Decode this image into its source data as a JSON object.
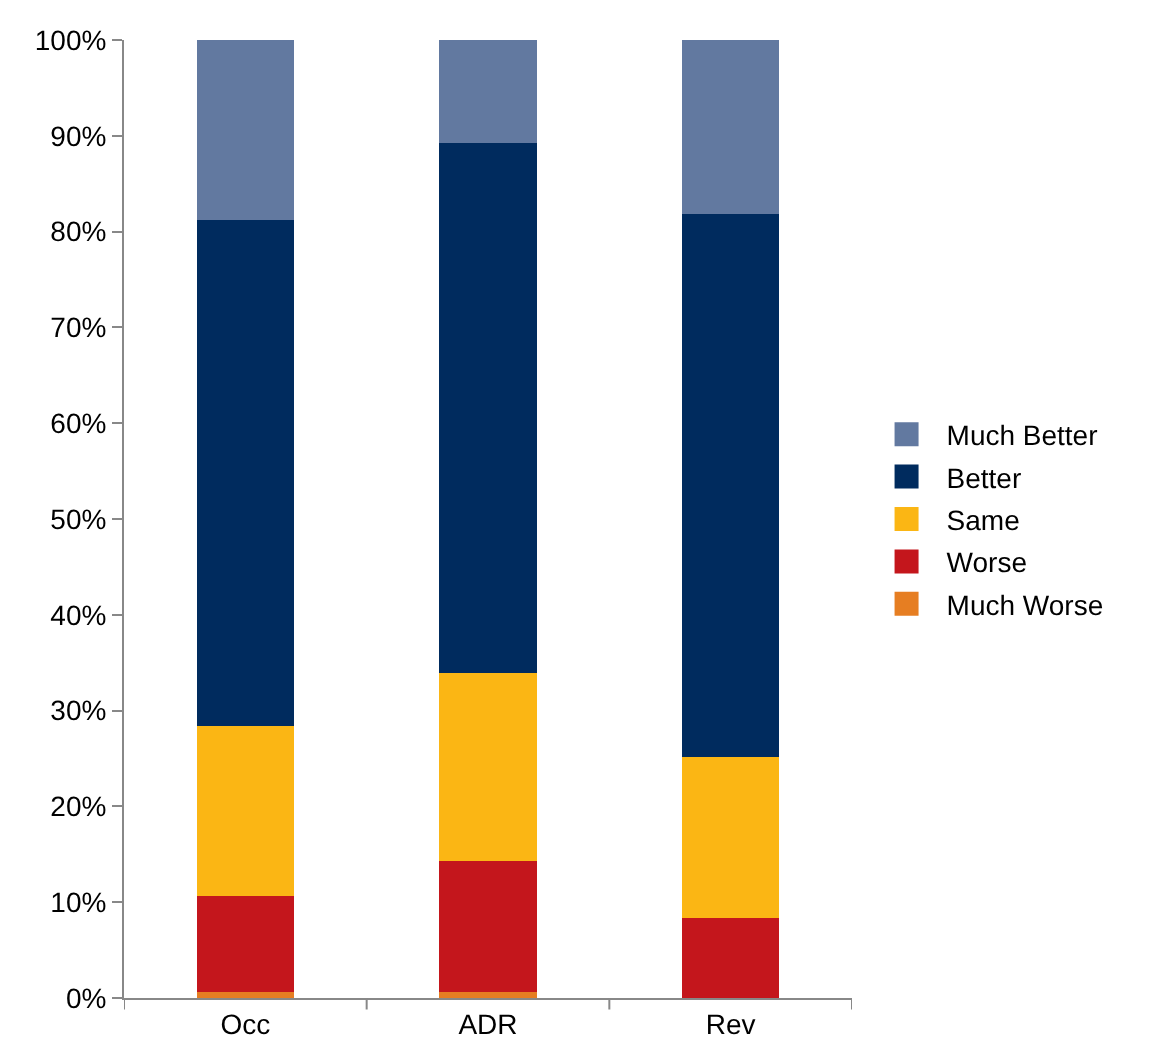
{
  "chart_data": {
    "type": "bar",
    "stacked": true,
    "categories": [
      "Occ",
      "ADR",
      "Rev"
    ],
    "series": [
      {
        "name": "Much Worse",
        "color": "#e67e22",
        "values": [
          0.6,
          0.6,
          0
        ]
      },
      {
        "name": "Worse",
        "color": "#c4161c",
        "values": [
          10.0,
          13.7,
          8.4
        ]
      },
      {
        "name": "Same",
        "color": "#fbb614",
        "values": [
          17.8,
          19.6,
          16.8
        ]
      },
      {
        "name": "Better",
        "color": "#002b5e",
        "values": [
          52.8,
          55.4,
          56.6
        ]
      },
      {
        "name": "Much Better",
        "color": "#6279a0",
        "values": [
          18.8,
          10.7,
          18.2
        ]
      }
    ],
    "ylim": [
      0,
      100
    ],
    "yticks": [
      {
        "value": 0,
        "label": "0%"
      },
      {
        "value": 10,
        "label": "10%"
      },
      {
        "value": 20,
        "label": "20%"
      },
      {
        "value": 30,
        "label": "30%"
      },
      {
        "value": 40,
        "label": "40%"
      },
      {
        "value": 50,
        "label": "50%"
      },
      {
        "value": 60,
        "label": "60%"
      },
      {
        "value": 70,
        "label": "70%"
      },
      {
        "value": 80,
        "label": "80%"
      },
      {
        "value": 90,
        "label": "90%"
      },
      {
        "value": 100,
        "label": "100%"
      }
    ],
    "grid": false,
    "legend": "right"
  }
}
